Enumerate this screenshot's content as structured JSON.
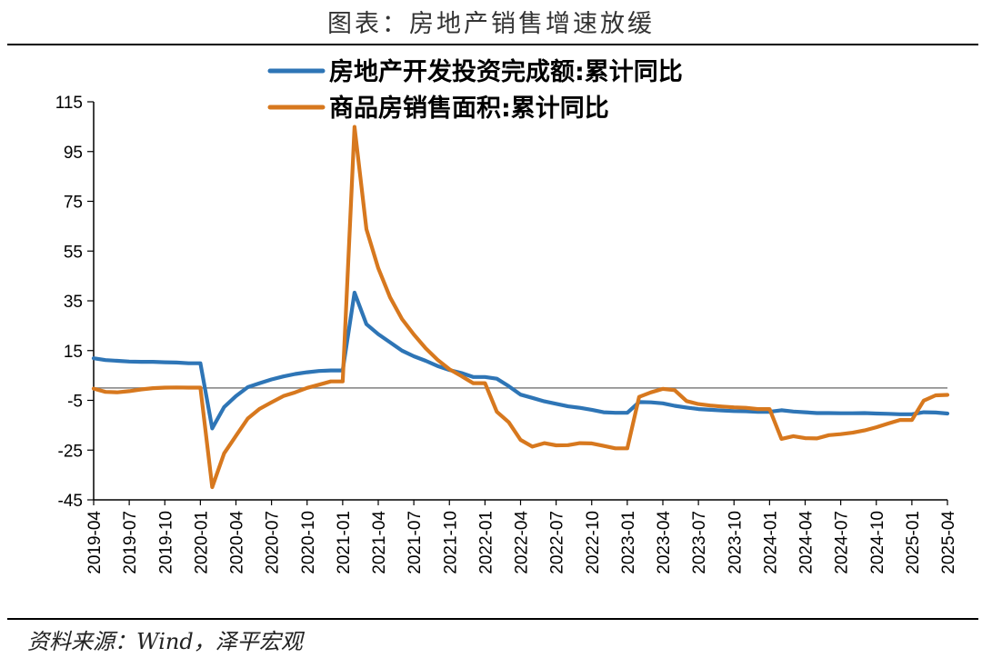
{
  "title": "图表：房地产销售增速放缓",
  "source": "资料来源：Wind，泽平宏观",
  "colors": {
    "series1": "#2E75B6",
    "series2": "#D7781E",
    "zero_line": "#7f7f7f",
    "axis": "#000000"
  },
  "chart_data": {
    "type": "line",
    "title": "图表：房地产销售增速放缓",
    "xlabel": "",
    "ylabel": "",
    "ylim": [
      -45,
      115
    ],
    "yticks": [
      115,
      95,
      75,
      55,
      35,
      15,
      -5,
      -25,
      -45
    ],
    "xticks": [
      "2019-04",
      "2019-07",
      "2019-10",
      "2020-01",
      "2020-04",
      "2020-07",
      "2020-10",
      "2021-01",
      "2021-04",
      "2021-07",
      "2021-10",
      "2022-01",
      "2022-04",
      "2022-07",
      "2022-10",
      "2023-01",
      "2023-04",
      "2023-07",
      "2023-10",
      "2024-01",
      "2024-04",
      "2024-07",
      "2024-10",
      "2025-01",
      "2025-04"
    ],
    "legend_position": "top",
    "grid": false,
    "x": [
      "2019-04",
      "2019-05",
      "2019-06",
      "2019-07",
      "2019-08",
      "2019-09",
      "2019-10",
      "2019-11",
      "2019-12",
      "2020-01",
      "2020-02",
      "2020-03",
      "2020-04",
      "2020-05",
      "2020-06",
      "2020-07",
      "2020-08",
      "2020-09",
      "2020-10",
      "2020-11",
      "2020-12",
      "2021-01",
      "2021-02",
      "2021-03",
      "2021-04",
      "2021-05",
      "2021-06",
      "2021-07",
      "2021-08",
      "2021-09",
      "2021-10",
      "2021-11",
      "2021-12",
      "2022-01",
      "2022-02",
      "2022-03",
      "2022-04",
      "2022-05",
      "2022-06",
      "2022-07",
      "2022-08",
      "2022-09",
      "2022-10",
      "2022-11",
      "2022-12",
      "2023-01",
      "2023-02",
      "2023-03",
      "2023-04",
      "2023-05",
      "2023-06",
      "2023-07",
      "2023-08",
      "2023-09",
      "2023-10",
      "2023-11",
      "2023-12",
      "2024-01",
      "2024-02",
      "2024-03",
      "2024-04",
      "2024-05",
      "2024-06",
      "2024-07",
      "2024-08",
      "2024-09",
      "2024-10",
      "2024-11",
      "2024-12",
      "2025-01",
      "2025-02",
      "2025-03",
      "2025-04"
    ],
    "series": [
      {
        "name": "房地产开发投资完成额:累计同比",
        "values": [
          11.9,
          11.2,
          10.9,
          10.6,
          10.5,
          10.5,
          10.3,
          10.2,
          9.9,
          9.9,
          -16.3,
          -7.7,
          -3.3,
          0.3,
          1.9,
          3.4,
          4.6,
          5.6,
          6.3,
          6.8,
          7.0,
          7.0,
          38.3,
          25.6,
          21.6,
          18.3,
          15.0,
          12.7,
          10.9,
          8.8,
          7.2,
          6.0,
          4.4,
          4.4,
          3.7,
          0.7,
          -2.7,
          -4.0,
          -5.4,
          -6.4,
          -7.4,
          -8.0,
          -8.8,
          -9.8,
          -10.0,
          -10.0,
          -5.7,
          -5.8,
          -6.2,
          -7.2,
          -7.9,
          -8.5,
          -8.8,
          -9.1,
          -9.3,
          -9.4,
          -9.6,
          -9.6,
          -9.0,
          -9.5,
          -9.8,
          -10.1,
          -10.1,
          -10.2,
          -10.2,
          -10.1,
          -10.3,
          -10.4,
          -10.6,
          -10.6,
          -9.8,
          -9.9,
          -10.3
        ]
      },
      {
        "name": "商品房销售面积:累计同比",
        "values": [
          -0.3,
          -1.6,
          -1.8,
          -1.3,
          -0.6,
          -0.1,
          0.1,
          0.2,
          0.1,
          0.1,
          -39.9,
          -26.3,
          -19.3,
          -12.3,
          -8.4,
          -5.8,
          -3.3,
          -1.8,
          0.0,
          1.3,
          2.6,
          2.6,
          104.9,
          63.8,
          48.1,
          36.4,
          27.7,
          21.5,
          15.9,
          11.3,
          7.5,
          4.8,
          1.9,
          1.9,
          -9.6,
          -13.8,
          -20.9,
          -23.6,
          -22.2,
          -23.1,
          -23.0,
          -22.2,
          -22.3,
          -23.3,
          -24.3,
          -24.3,
          -3.6,
          -1.8,
          -0.4,
          -0.9,
          -5.3,
          -6.5,
          -7.1,
          -7.5,
          -7.8,
          -8.0,
          -8.5,
          -8.5,
          -20.5,
          -19.4,
          -20.2,
          -20.3,
          -19.0,
          -18.6,
          -18.0,
          -17.1,
          -15.8,
          -14.3,
          -12.9,
          -12.9,
          -5.1,
          -3.0,
          -2.8
        ]
      }
    ]
  }
}
